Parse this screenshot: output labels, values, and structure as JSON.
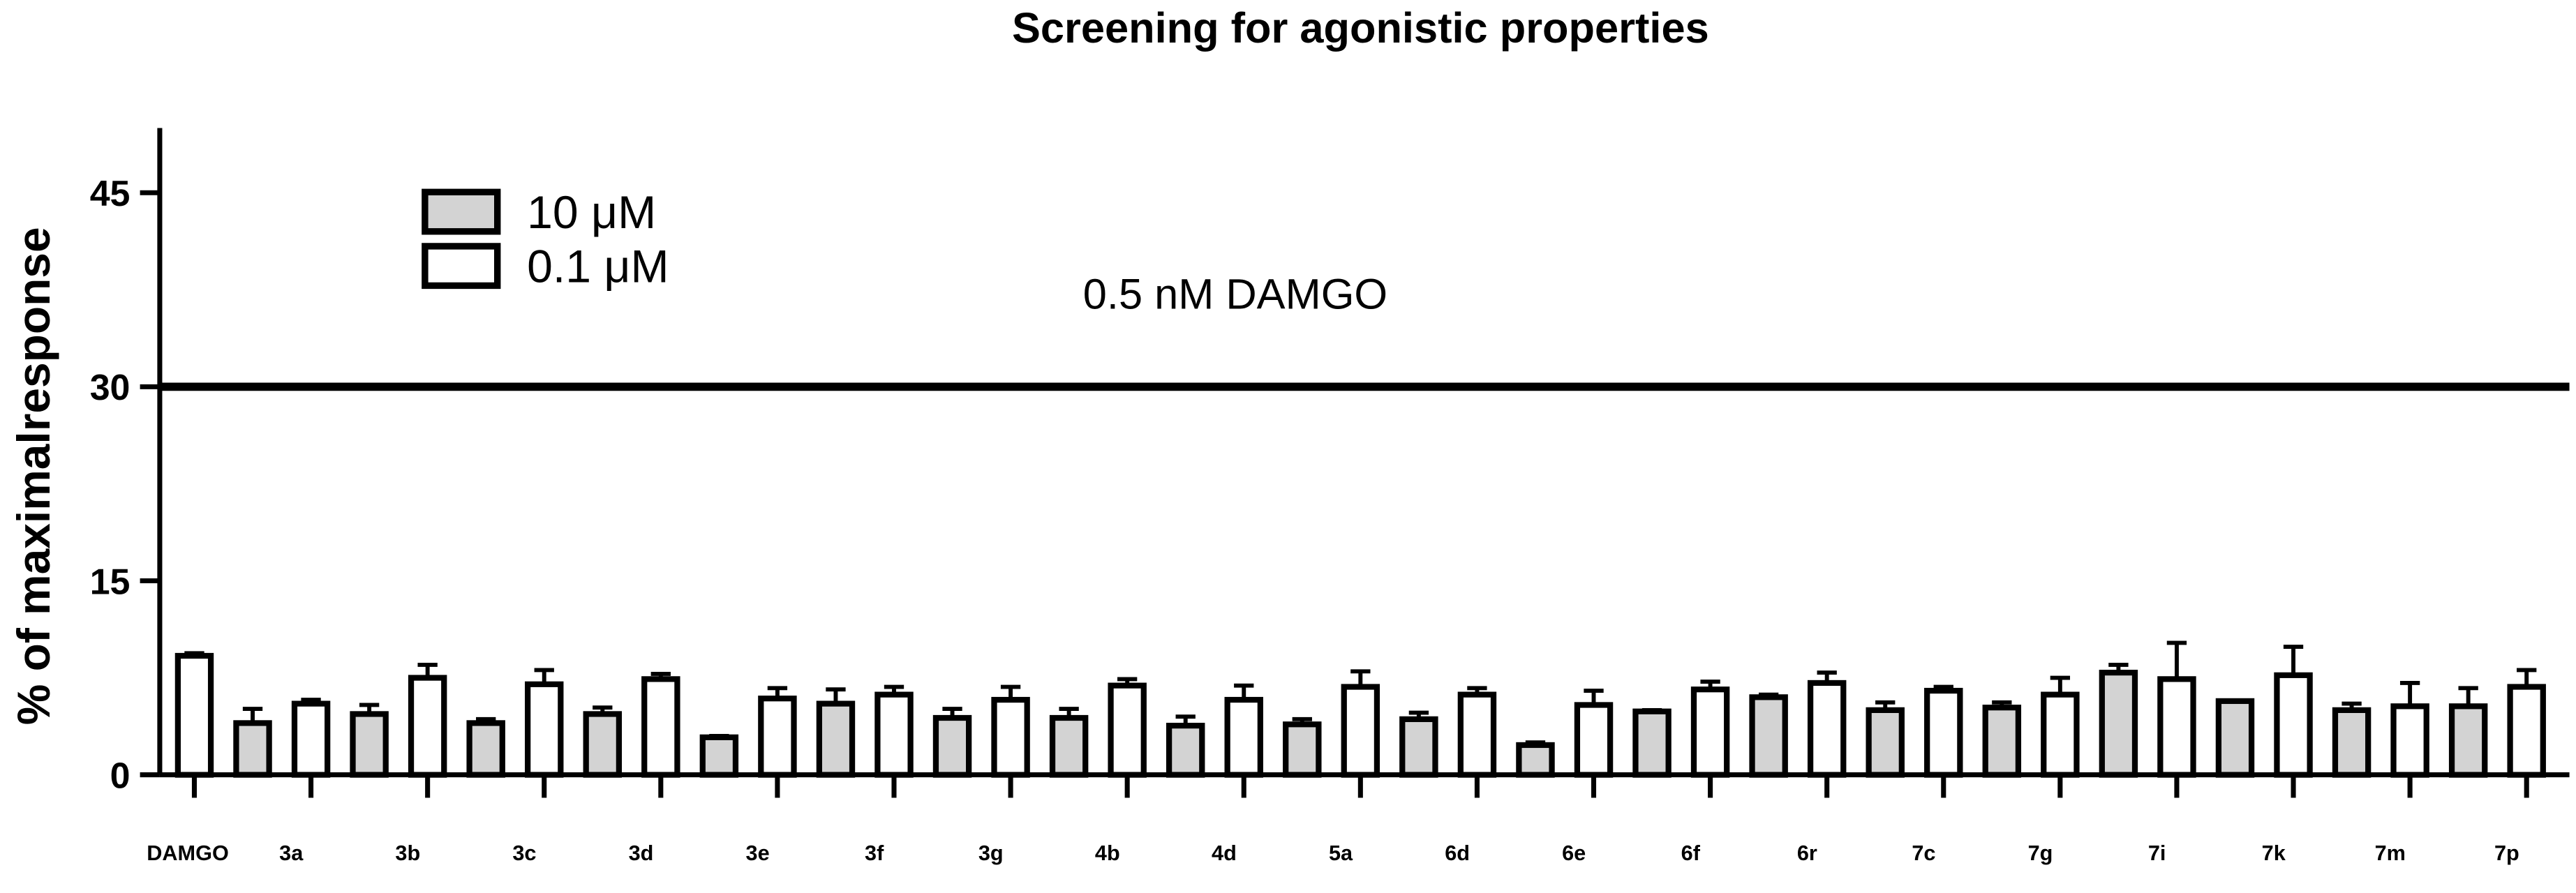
{
  "chart_data": {
    "type": "bar",
    "title": "Screening for agonistic properties",
    "y_label": "% of maximalresponse",
    "categories": [
      "DAMGO",
      "3a",
      "3b",
      "3c",
      "3d",
      "3e",
      "3f",
      "3g",
      "4b",
      "4d",
      "5a",
      "6d",
      "6e",
      "6f",
      "6r",
      "7c",
      "7g",
      "7i",
      "7k",
      "7m",
      "7p"
    ],
    "series": [
      {
        "name": "10 μM",
        "color": "#d3d3d3",
        "values": [
          null,
          4,
          4.7,
          4,
          4.7,
          2.9,
          5.5,
          4.4,
          4.4,
          3.8,
          3.9,
          4.3,
          2.3,
          4.9,
          6,
          5,
          5.2,
          7.9,
          5.7,
          5,
          5.3
        ],
        "errors": [
          null,
          1.1,
          0.7,
          0.3,
          0.5,
          0.1,
          1.1,
          0.7,
          0.7,
          0.7,
          0.4,
          0.5,
          0.2,
          0.1,
          0.2,
          0.6,
          0.4,
          0.6,
          0,
          0.5,
          1.4
        ]
      },
      {
        "name": "0.1 μM",
        "color": "#ffffff",
        "values": [
          9.2,
          5.5,
          7.5,
          7,
          7.4,
          5.9,
          6.2,
          5.8,
          6.9,
          5.8,
          6.8,
          6.2,
          5.4,
          6.6,
          7.1,
          6.5,
          6.2,
          7.4,
          7.7,
          5.3,
          6.8
        ],
        "errors": [
          0.2,
          0.3,
          1,
          1.1,
          0.4,
          0.8,
          0.6,
          1,
          0.5,
          1.1,
          1.2,
          0.5,
          1.1,
          0.6,
          0.8,
          0.3,
          1.3,
          2.8,
          2.2,
          1.8,
          1.3
        ]
      }
    ],
    "reference_line": {
      "value": 30,
      "label": "0.5 nM DAMGO"
    },
    "ylim": [
      0,
      50
    ],
    "yticks": [
      0,
      15,
      30,
      45
    ],
    "legend": "top-left"
  }
}
